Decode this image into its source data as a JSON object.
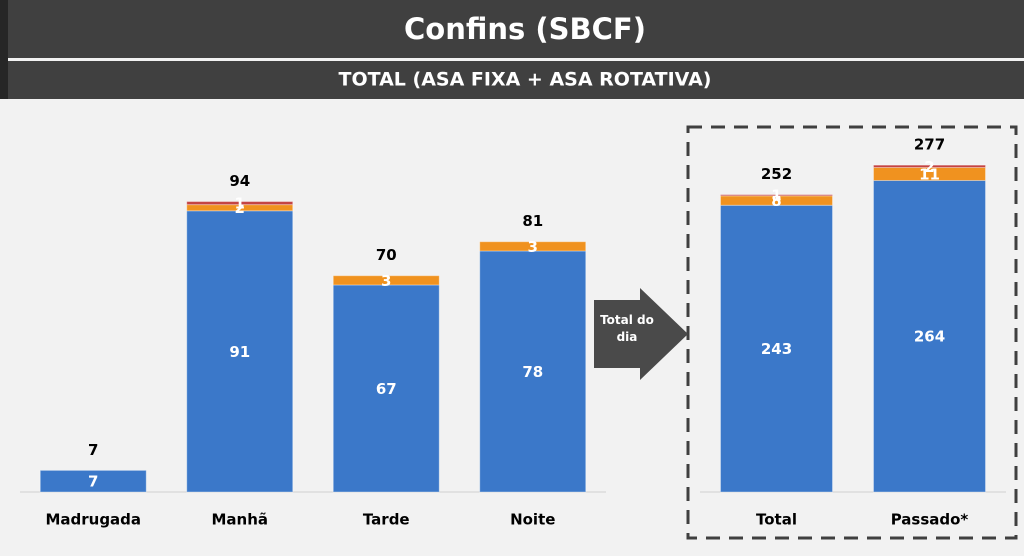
{
  "header": {
    "title": "Confins (SBCF)",
    "subtitle": "TOTAL (ASA FIXA + ASA ROTATIVA)"
  },
  "annotation": "Total do dia",
  "chart_data": [
    {
      "type": "bar",
      "stacked": true,
      "categories": [
        "Madrugada",
        "Manhã",
        "Tarde",
        "Noite"
      ],
      "series": [
        {
          "color": "#3b78c9",
          "values": [
            7,
            91,
            67,
            78
          ]
        },
        {
          "color": "#f0921f",
          "values": [
            null,
            2,
            3,
            3
          ]
        },
        {
          "color": "#c44343",
          "values": [
            null,
            1,
            null,
            null
          ]
        }
      ],
      "totals": [
        7,
        94,
        70,
        81
      ],
      "ylim": [
        0,
        100
      ]
    },
    {
      "type": "bar",
      "stacked": true,
      "categories": [
        "Total",
        "Passado*"
      ],
      "series": [
        {
          "color": "#3b78c9",
          "values": [
            243,
            264
          ]
        },
        {
          "color": "#f0921f",
          "values": [
            8,
            11
          ]
        },
        {
          "color": "#c44343",
          "values": [
            1,
            2
          ]
        }
      ],
      "totals": [
        252,
        277
      ],
      "ylim": [
        0,
        300
      ]
    }
  ]
}
